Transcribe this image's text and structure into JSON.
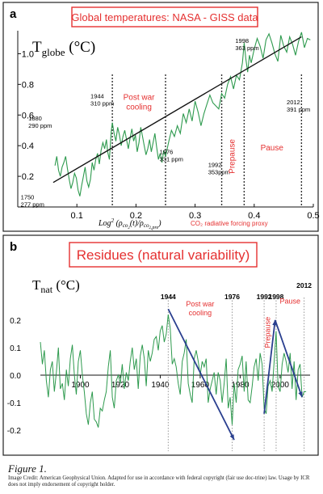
{
  "chart_data": [
    {
      "type": "line",
      "panel_letter": "a",
      "title": "Global temperatures: NASA - GISS data",
      "ylabel_main": "T",
      "ylabel_sub": "globe",
      "ylabel_unit": " (°C)",
      "xlabel_text": "Log",
      "xlabel_sup": "2",
      "xlabel_arg": " (ρ",
      "xlabel_s1": "co",
      "xlabel_s2": "2",
      "xlabel_mid": "(t)/ρ",
      "xlabel_s3": "co",
      "xlabel_s4": "2",
      "xlabel_s5": ",pre",
      "xlabel_end": ")",
      "xlabel_note": "CO₂ radiative forcing proxy",
      "xlim": [
        0,
        0.5
      ],
      "ylim": [
        0,
        1.15
      ],
      "x_ticks": [
        0.1,
        0.2,
        0.3,
        0.4,
        0.5
      ],
      "y_ticks": [
        0.2,
        0.4,
        0.6,
        0.8,
        1.0
      ],
      "x_tick_labels": [
        "0.1",
        "0.2",
        "0.3",
        "0.4",
        "0.5"
      ],
      "y_tick_labels": [
        "0.2",
        "0.4",
        "0.6",
        "0.8",
        "1.0"
      ],
      "series": [
        {
          "color": "#2e9a4e",
          "x": [
            0.063,
            0.066,
            0.069,
            0.072,
            0.075,
            0.078,
            0.081,
            0.084,
            0.087,
            0.09,
            0.093,
            0.096,
            0.099,
            0.102,
            0.105,
            0.108,
            0.111,
            0.114,
            0.117,
            0.12,
            0.123,
            0.126,
            0.129,
            0.132,
            0.135,
            0.138,
            0.141,
            0.144,
            0.147,
            0.15,
            0.152,
            0.155,
            0.158,
            0.16,
            0.163,
            0.166,
            0.169,
            0.172,
            0.175,
            0.178,
            0.181,
            0.184,
            0.187,
            0.19,
            0.193,
            0.196,
            0.199,
            0.202,
            0.205,
            0.208,
            0.211,
            0.214,
            0.217,
            0.22,
            0.223,
            0.226,
            0.229,
            0.232,
            0.235,
            0.238,
            0.241,
            0.244,
            0.247,
            0.25,
            0.255,
            0.26,
            0.265,
            0.27,
            0.275,
            0.28,
            0.285,
            0.29,
            0.295,
            0.3,
            0.305,
            0.31,
            0.315,
            0.32,
            0.325,
            0.33,
            0.335,
            0.34,
            0.345,
            0.35,
            0.355,
            0.36,
            0.365,
            0.37,
            0.375,
            0.38,
            0.383,
            0.386,
            0.389,
            0.392,
            0.395,
            0.4,
            0.405,
            0.41,
            0.415,
            0.42,
            0.425,
            0.43,
            0.435,
            0.44,
            0.445,
            0.45,
            0.455,
            0.46,
            0.465,
            0.47,
            0.475,
            0.48,
            0.485,
            0.49,
            0.495
          ],
          "y": [
            0.27,
            0.33,
            0.24,
            0.2,
            0.26,
            0.29,
            0.33,
            0.25,
            0.18,
            0.12,
            0.16,
            0.22,
            0.19,
            0.11,
            0.07,
            0.14,
            0.2,
            0.26,
            0.17,
            0.13,
            0.18,
            0.29,
            0.24,
            0.31,
            0.35,
            0.28,
            0.37,
            0.42,
            0.38,
            0.44,
            0.36,
            0.31,
            0.49,
            0.55,
            0.48,
            0.43,
            0.52,
            0.47,
            0.4,
            0.46,
            0.5,
            0.44,
            0.38,
            0.45,
            0.51,
            0.43,
            0.47,
            0.36,
            0.42,
            0.52,
            0.46,
            0.4,
            0.34,
            0.38,
            0.44,
            0.36,
            0.42,
            0.48,
            0.39,
            0.31,
            0.35,
            0.29,
            0.37,
            0.33,
            0.42,
            0.5,
            0.46,
            0.53,
            0.48,
            0.61,
            0.55,
            0.64,
            0.56,
            0.69,
            0.62,
            0.53,
            0.61,
            0.67,
            0.73,
            0.68,
            0.66,
            0.64,
            0.74,
            0.71,
            0.8,
            0.85,
            0.77,
            0.86,
            0.83,
            0.94,
            1.07,
            0.96,
            0.88,
            0.99,
            0.94,
            1.03,
            1.1,
            1.05,
            0.97,
            1.09,
            1.13,
            1.07,
            1.0,
            0.95,
            1.12,
            1.05,
            1.01,
            1.11,
            1.06,
            0.99,
            1.08,
            1.14,
            1.04,
            1.1,
            1.09
          ]
        }
      ],
      "trend": {
        "x": [
          0.06,
          0.48
        ],
        "y": [
          0.16,
          1.11
        ]
      },
      "vlines": [
        0.16,
        0.25,
        0.345,
        0.383,
        0.48
      ],
      "annotations": [
        {
          "text": "1998",
          "text2": "363 ppm",
          "x": 0.368,
          "y": 1.07
        },
        {
          "text": "1944",
          "text2": "310 ppm",
          "x": 0.123,
          "y": 0.71
        },
        {
          "text": "1880",
          "text2": "290 ppm",
          "x": 0.018,
          "y": 0.565
        },
        {
          "text": "1976",
          "text2": "331 ppm",
          "x": 0.24,
          "y": 0.345
        },
        {
          "text": "1992",
          "text2": "353ppm",
          "x": 0.322,
          "y": 0.26
        },
        {
          "text": "2012",
          "text2": "391 ppm",
          "x": 0.455,
          "y": 0.67
        },
        {
          "text": "1750",
          "text2": "277 ppm",
          "x": 0.005,
          "y": 0.05
        }
      ],
      "region_labels": [
        {
          "text": "Post war",
          "text2": "cooling",
          "x": 0.205,
          "y": 0.7,
          "rotated": false
        },
        {
          "text": "Prepause",
          "text2": "",
          "x": 0.367,
          "y": 0.33,
          "rotated": true
        },
        {
          "text": "Pause",
          "text2": "",
          "x": 0.43,
          "y": 0.37,
          "rotated": false
        }
      ]
    },
    {
      "type": "line",
      "panel_letter": "b",
      "title": "Residues (natural variability)",
      "ylabel_main": "T",
      "ylabel_sub": "nat",
      "ylabel_unit": " (°C)",
      "xlim": [
        1880,
        2015
      ],
      "ylim": [
        -0.27,
        0.27
      ],
      "x_ticks": [
        1900,
        1920,
        1940,
        1960,
        1980,
        2000
      ],
      "y_ticks": [
        -0.2,
        -0.1,
        0.0,
        0.1,
        0.2
      ],
      "x_tick_labels": [
        "1900",
        "1920",
        "1940",
        "1960",
        "1980",
        "2000"
      ],
      "y_tick_labels": [
        "-0.2",
        "-0.1",
        "0.0",
        "0.1",
        "0.2"
      ],
      "series": [
        {
          "color": "#2e9a4e",
          "x": [
            1880,
            1881,
            1882,
            1883,
            1884,
            1885,
            1886,
            1887,
            1888,
            1889,
            1890,
            1891,
            1892,
            1893,
            1894,
            1895,
            1896,
            1897,
            1898,
            1899,
            1900,
            1901,
            1902,
            1903,
            1904,
            1905,
            1906,
            1907,
            1908,
            1909,
            1910,
            1911,
            1912,
            1913,
            1914,
            1915,
            1916,
            1917,
            1918,
            1919,
            1920,
            1921,
            1922,
            1923,
            1924,
            1925,
            1926,
            1927,
            1928,
            1929,
            1930,
            1931,
            1932,
            1933,
            1934,
            1935,
            1936,
            1937,
            1938,
            1939,
            1940,
            1941,
            1942,
            1943,
            1944,
            1945,
            1946,
            1947,
            1948,
            1949,
            1950,
            1951,
            1952,
            1953,
            1954,
            1955,
            1956,
            1957,
            1958,
            1959,
            1960,
            1961,
            1962,
            1963,
            1964,
            1965,
            1966,
            1967,
            1968,
            1969,
            1970,
            1971,
            1972,
            1973,
            1974,
            1975,
            1976,
            1977,
            1978,
            1979,
            1980,
            1981,
            1982,
            1983,
            1984,
            1985,
            1986,
            1987,
            1988,
            1989,
            1990,
            1991,
            1992,
            1993,
            1994,
            1995,
            1996,
            1997,
            1998,
            1999,
            2000,
            2001,
            2002,
            2003,
            2004,
            2005,
            2006,
            2007,
            2008,
            2009,
            2010,
            2011,
            2012,
            2013
          ],
          "y": [
            0.12,
            0.04,
            0.09,
            -0.02,
            -0.08,
            0.02,
            0.05,
            -0.06,
            0.01,
            0.1,
            -0.05,
            -0.03,
            -0.09,
            0.02,
            -0.04,
            0.06,
            0.11,
            0.0,
            -0.07,
            0.05,
            0.09,
            0.0,
            -0.06,
            -0.14,
            -0.18,
            -0.1,
            -0.06,
            -0.16,
            -0.17,
            -0.19,
            -0.12,
            -0.13,
            -0.09,
            -0.06,
            0.03,
            0.09,
            -0.08,
            -0.12,
            -0.02,
            0.0,
            -0.03,
            0.04,
            -0.05,
            0.01,
            -0.02,
            0.05,
            0.1,
            0.02,
            0.06,
            -0.05,
            0.07,
            0.11,
            0.06,
            -0.04,
            0.09,
            0.05,
            0.08,
            0.13,
            0.14,
            0.09,
            0.16,
            0.18,
            0.12,
            0.15,
            0.22,
            0.17,
            0.04,
            0.06,
            0.03,
            -0.03,
            -0.07,
            0.05,
            0.08,
            0.13,
            -0.03,
            -0.07,
            -0.1,
            0.06,
            0.09,
            0.05,
            0.0,
            0.05,
            0.03,
            0.06,
            -0.1,
            -0.05,
            -0.02,
            0.01,
            -0.07,
            0.01,
            -0.02,
            -0.1,
            -0.03,
            0.06,
            -0.12,
            -0.08,
            -0.18,
            -0.03,
            -0.1,
            0.02,
            0.04,
            0.07,
            -0.06,
            0.05,
            -0.09,
            -0.1,
            -0.04,
            0.03,
            0.06,
            -0.02,
            0.08,
            0.04,
            -0.12,
            -0.14,
            -0.04,
            -0.02,
            -0.06,
            0.05,
            0.16,
            -0.04,
            -0.06,
            0.04,
            0.08,
            0.05,
            0.01,
            0.08,
            -0.05,
            0.05,
            -0.09,
            0.02,
            0.04,
            -0.08,
            -0.06,
            -0.06
          ]
        }
      ],
      "vlines": [
        1944,
        1976,
        1992,
        1998,
        2012
      ],
      "top_labels": [
        {
          "text": "1944",
          "x": 1944
        },
        {
          "text": "1976",
          "x": 1976
        },
        {
          "text": "1992",
          "x": 1992
        },
        {
          "text": "1998",
          "x": 1998
        },
        {
          "text": "2012",
          "x": 2012
        }
      ],
      "arrows": [
        {
          "x1": 1944,
          "y1": 0.24,
          "x2": 1977,
          "y2": -0.235
        },
        {
          "x1": 1992,
          "y1": -0.14,
          "x2": 1997.5,
          "y2": 0.2
        },
        {
          "x1": 1997.5,
          "y1": 0.2,
          "x2": 2011,
          "y2": -0.08
        }
      ],
      "region_labels": [
        {
          "text": "Post war",
          "text2": "cooling",
          "x": 1960,
          "y": 0.25,
          "rotated": false
        },
        {
          "text": "Prepause",
          "text2": "",
          "x": 1995,
          "y": 0.155,
          "rotated": true
        },
        {
          "text": "Pause",
          "text2": "",
          "x": 2005,
          "y": 0.26,
          "rotated": false
        }
      ]
    }
  ],
  "caption": {
    "title": "Figure 1.",
    "credit": "Image Credit: American Geophysical Union. Adapted for use in accordance with federal copyright (fair use doc-trine) law. Usage by ICR does not imply endorsement of copyright holder."
  },
  "colors": {
    "series": "#2e9a4e",
    "trend": "#111111",
    "title_text": "#e53030",
    "arrows": "#2a3f8f",
    "region_text": "#e53030"
  }
}
